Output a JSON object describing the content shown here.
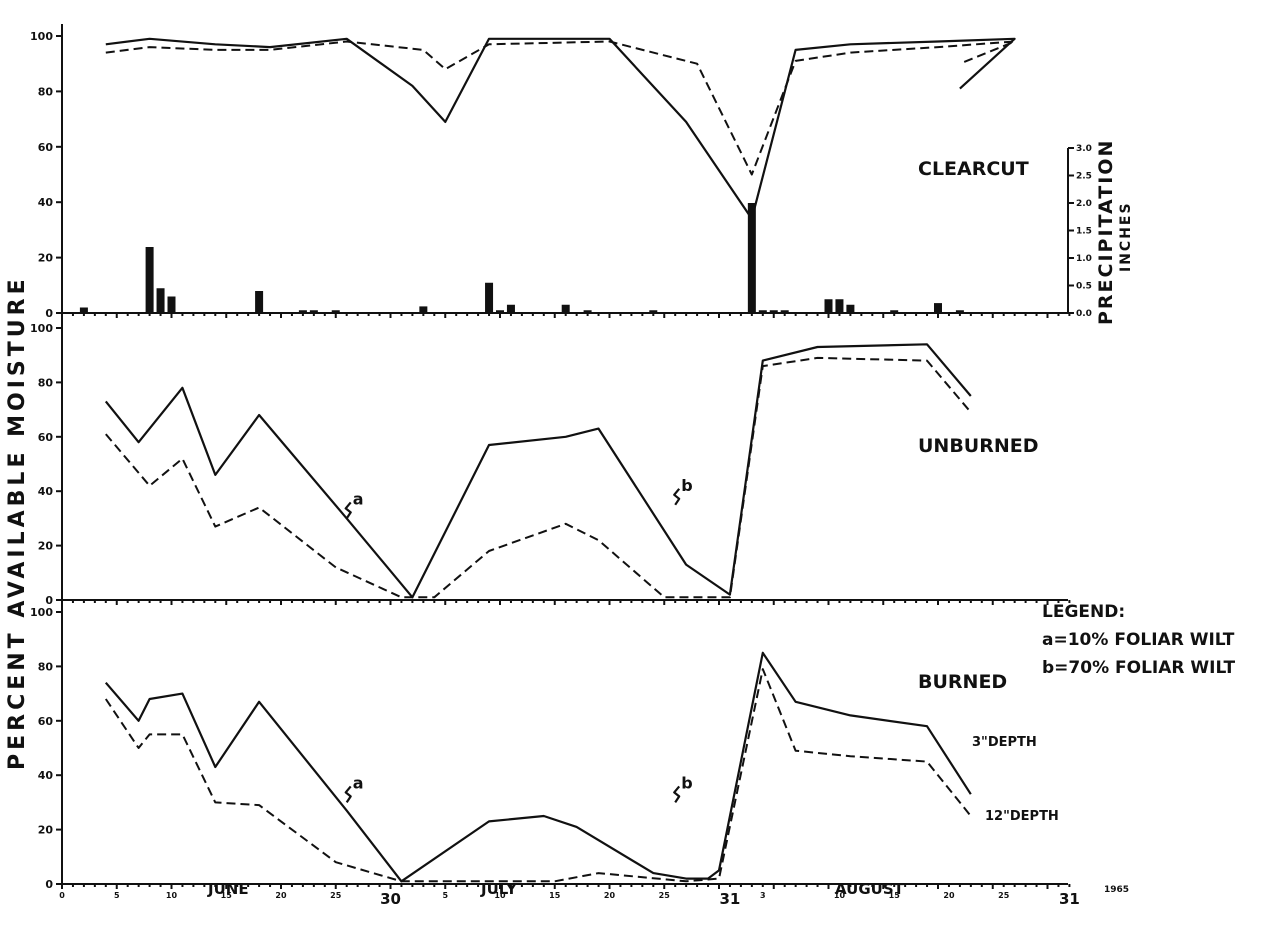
{
  "figure": {
    "y_axis_title": "PERCENT AVAILABLE MOISTURE",
    "year": "1965"
  },
  "legend": {
    "title": "LEGEND:",
    "a": "a=10% FOLIAR WILT",
    "b": "b=70% FOLIAR WILT"
  },
  "chart_data": [
    {
      "type": "line",
      "title": "CLEARCUT",
      "ylim": [
        0,
        100
      ],
      "y_ticks": [
        "0",
        "20",
        "40",
        "60",
        "80",
        "100"
      ],
      "series": [
        {
          "name": "3\"DEPTH",
          "style": "solid",
          "x": [
            4,
            8,
            14,
            19,
            26,
            32,
            35,
            39,
            50,
            57,
            63,
            67,
            72,
            80,
            87,
            82
          ],
          "y": [
            97,
            99,
            97,
            96,
            99,
            82,
            69,
            99,
            99,
            69,
            34,
            95,
            97,
            98,
            99,
            81
          ]
        },
        {
          "name": "12\"DEPTH",
          "style": "dashed",
          "x": [
            4,
            8,
            14,
            19,
            26,
            33,
            35,
            39,
            50,
            58,
            63,
            67,
            72,
            80,
            87,
            82
          ],
          "y": [
            94,
            96,
            95,
            95,
            98,
            95,
            88,
            97,
            98,
            90,
            50,
            91,
            94,
            96,
            98,
            90
          ]
        }
      ],
      "precipitation": {
        "axis_title": "PRECIPITATION",
        "axis_unit": "INCHES",
        "ylim": [
          0,
          3.0
        ],
        "y_ticks": [
          "0.0",
          "0.5",
          "1.0",
          "1.5",
          "2.0",
          "2.5",
          "3.0"
        ],
        "x": [
          2,
          8,
          9,
          10,
          18,
          22,
          23,
          25,
          33,
          39,
          40,
          41,
          46,
          48,
          54,
          63,
          64,
          65,
          66,
          70,
          71,
          72,
          76,
          80,
          82
        ],
        "values": [
          0.1,
          1.2,
          0.45,
          0.3,
          0.4,
          0.05,
          0.05,
          0.05,
          0.12,
          0.55,
          0.05,
          0.15,
          0.15,
          0.05,
          0.05,
          2.0,
          0.05,
          0.05,
          0.05,
          0.25,
          0.25,
          0.15,
          0.05,
          0.18,
          0.05
        ]
      },
      "annotations": []
    },
    {
      "type": "line",
      "title": "UNBURNED",
      "ylim": [
        0,
        100
      ],
      "y_ticks": [
        "0",
        "20",
        "40",
        "60",
        "80",
        "100"
      ],
      "series": [
        {
          "name": "3\"DEPTH",
          "style": "solid",
          "x": [
            4,
            7,
            11,
            14,
            18,
            26,
            32,
            39,
            46,
            49,
            57,
            61,
            64,
            69,
            79,
            83
          ],
          "y": [
            73,
            58,
            78,
            46,
            68,
            30,
            1,
            57,
            60,
            63,
            13,
            2,
            88,
            93,
            94,
            75
          ]
        },
        {
          "name": "12\"DEPTH",
          "style": "dashed",
          "x": [
            4,
            8,
            11,
            14,
            18,
            25,
            31,
            34,
            39,
            46,
            49,
            55,
            61,
            64,
            69,
            79,
            83
          ],
          "y": [
            61,
            42,
            52,
            27,
            34,
            12,
            1,
            1,
            18,
            28,
            22,
            1,
            1,
            86,
            89,
            88,
            69
          ]
        }
      ],
      "annotations": [
        {
          "text": "a",
          "x": 26,
          "y": 30
        },
        {
          "text": "b",
          "x": 56,
          "y": 35
        }
      ]
    },
    {
      "type": "line",
      "title": "BURNED",
      "ylim": [
        0,
        100
      ],
      "y_ticks": [
        "0",
        "20",
        "40",
        "60",
        "80",
        "100"
      ],
      "x_ticks": [
        "0",
        "5",
        "10",
        "15",
        "20",
        "25",
        "30",
        "5",
        "10",
        "15",
        "20",
        "25",
        "31",
        "3",
        "10",
        "15",
        "20",
        "25",
        "31"
      ],
      "x_tick_pos": [
        0,
        5,
        10,
        15,
        20,
        25,
        30,
        35,
        40,
        45,
        50,
        55,
        61,
        64,
        71,
        76,
        81,
        86,
        92
      ],
      "x_major_labels": [
        "30",
        "31",
        "31"
      ],
      "months": [
        "JUNE",
        "JULY",
        "AUGUST"
      ],
      "series": [
        {
          "name": "3\"DEPTH",
          "style": "solid",
          "x": [
            4,
            7,
            8,
            11,
            14,
            18,
            26,
            31,
            39,
            44,
            47,
            54,
            57,
            59,
            60,
            64,
            67,
            72,
            79,
            83
          ],
          "y": [
            74,
            60,
            68,
            70,
            43,
            67,
            27,
            1,
            23,
            25,
            21,
            4,
            2,
            2,
            5,
            85,
            67,
            62,
            58,
            33
          ]
        },
        {
          "name": "12\"DEPTH",
          "style": "dashed",
          "x": [
            4,
            7,
            8,
            11,
            14,
            18,
            25,
            31,
            39,
            45,
            49,
            57,
            60,
            64,
            67,
            72,
            79,
            83
          ],
          "y": [
            68,
            50,
            55,
            55,
            30,
            29,
            8,
            1,
            1,
            1,
            4,
            1,
            2,
            79,
            49,
            47,
            45,
            25
          ]
        }
      ],
      "series_labels": [
        "3\"DEPTH",
        "12\"DEPTH"
      ],
      "annotations": [
        {
          "text": "a",
          "x": 26,
          "y": 30
        },
        {
          "text": "b",
          "x": 56,
          "y": 30
        }
      ]
    }
  ]
}
